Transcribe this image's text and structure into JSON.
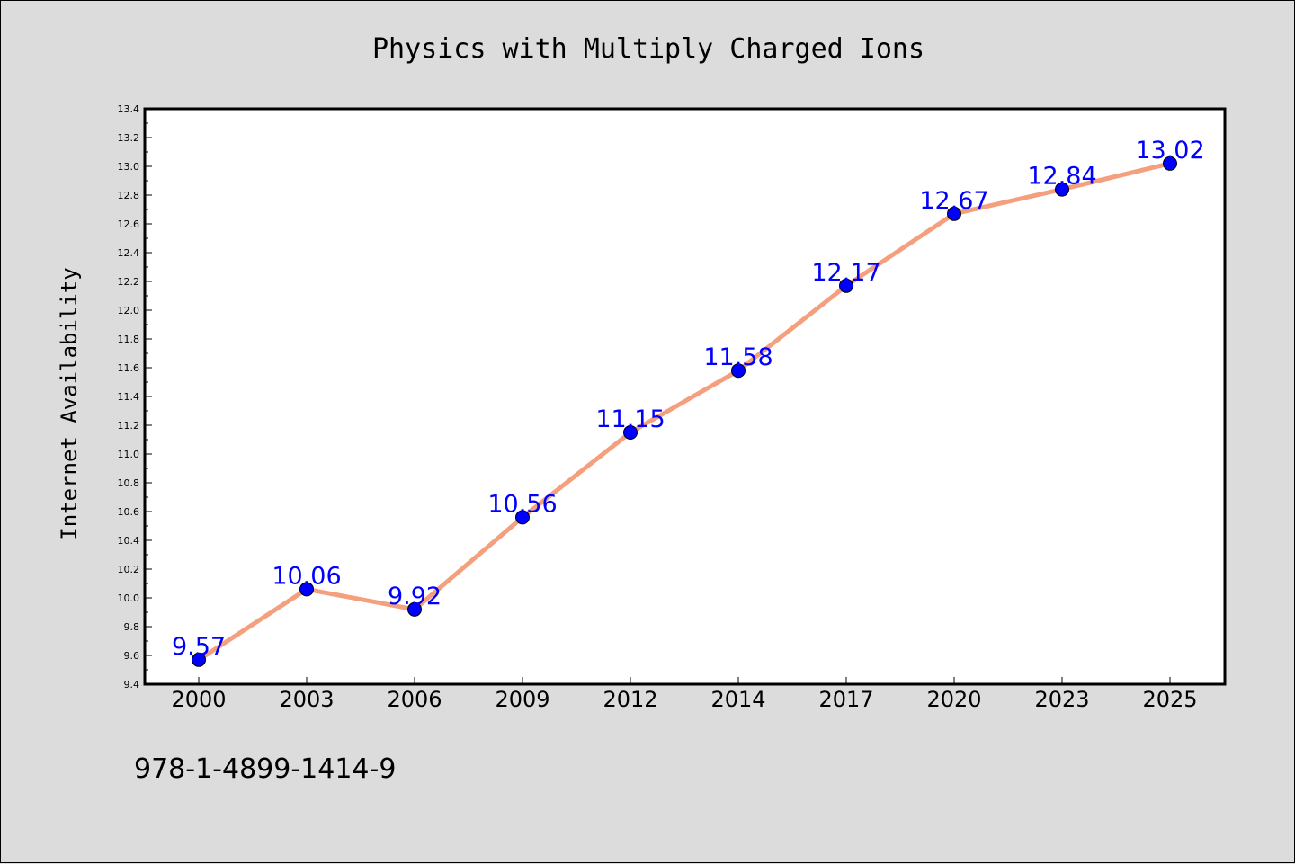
{
  "chart_data": {
    "type": "line",
    "title": "Physics with Multiply Charged Ions",
    "xlabel": "",
    "ylabel": "Internet Availability",
    "categories": [
      "2000",
      "2003",
      "2006",
      "2009",
      "2012",
      "2014",
      "2017",
      "2020",
      "2023",
      "2025"
    ],
    "series": [
      {
        "values": [
          9.57,
          10.06,
          9.92,
          10.56,
          11.15,
          11.58,
          12.17,
          12.67,
          12.84,
          13.02
        ],
        "labels": [
          "9.57",
          "10.06",
          "9.92",
          "10.56",
          "11.15",
          "11.58",
          "12.17",
          "12.67",
          "12.84",
          "13.02"
        ]
      }
    ],
    "ylim": [
      9.4,
      13.4
    ],
    "yticks": [
      "9.4",
      "9.6",
      "9.8",
      "10.0",
      "10.2",
      "10.4",
      "10.6",
      "10.8",
      "11.0",
      "11.2",
      "11.4",
      "11.6",
      "11.8",
      "12.0",
      "12.2",
      "12.4",
      "12.6",
      "12.8",
      "13.0",
      "13.2",
      "13.4"
    ],
    "grid": false,
    "legend": "none",
    "colors": {
      "line": "#f4a07e",
      "marker": "#0000ff",
      "data_label": "#0000ff",
      "plot_background": "#ffffff",
      "figure_background": "#dcdcdc"
    }
  },
  "footer": {
    "isbn": "978-1-4899-1414-9"
  }
}
